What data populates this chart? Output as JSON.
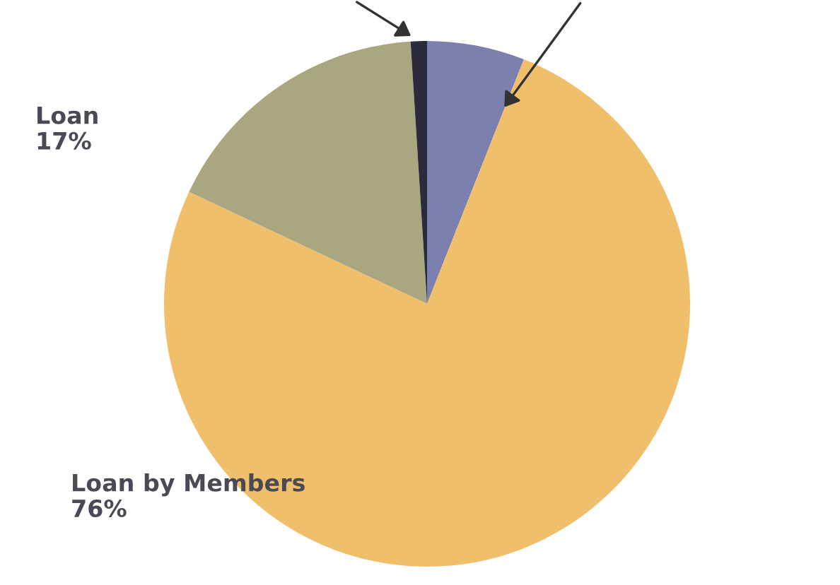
{
  "chart_data": {
    "type": "pie",
    "categories": [
      null,
      "Loan by Members",
      "Loan",
      null
    ],
    "values": [
      6,
      76,
      17,
      1
    ],
    "value_labels": [
      null,
      "76%",
      "17%",
      null
    ],
    "colors": [
      "#7b80ae",
      "#f0bf6c",
      "#a9a680",
      "#2b2b3b"
    ]
  }
}
